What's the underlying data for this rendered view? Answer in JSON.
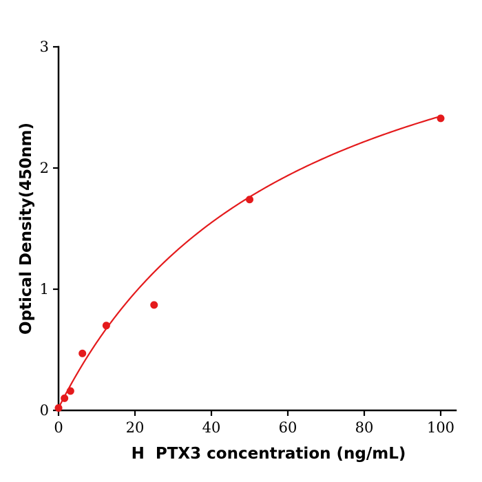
{
  "chart_data": {
    "type": "scatter",
    "title": "",
    "xlabel": "H  PTX3 concentration (ng/mL)",
    "ylabel": "Optical Density(450nm)",
    "x": [
      0,
      1.56,
      3.12,
      6.25,
      12.5,
      25,
      50,
      100
    ],
    "y": [
      0.02,
      0.1,
      0.16,
      0.47,
      0.7,
      0.87,
      1.74,
      2.41
    ],
    "fit_curve": {
      "model": "michaelis_menten",
      "equation": "y = a*x/(b+x) + c",
      "a": 3.9,
      "b": 62,
      "c": 0.02,
      "x_start": 0,
      "x_end": 100
    },
    "xlim": [
      0,
      104
    ],
    "ylim": [
      0,
      3
    ],
    "xticks": [
      0,
      20,
      40,
      60,
      80,
      100
    ],
    "yticks": [
      0,
      1,
      2,
      3
    ],
    "grid": false,
    "legend": null,
    "point_color": "#e41a1c",
    "curve_color": "#e41a1c",
    "axis_color": "#000000"
  }
}
